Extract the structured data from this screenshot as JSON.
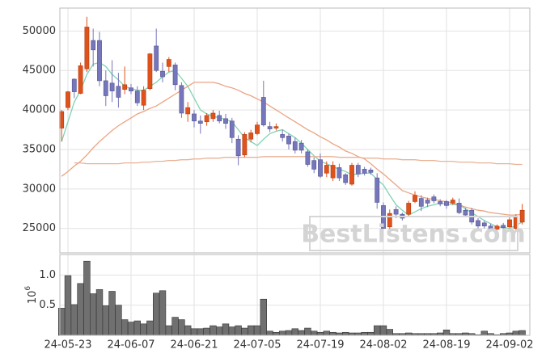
{
  "chart_data": [
    {
      "type": "candlestick",
      "ylim": [
        21900,
        52900
      ],
      "yticks": [
        25000,
        30000,
        35000,
        40000,
        45000,
        50000
      ],
      "grid": true,
      "up_color": "#e0521c",
      "down_color": "#7676bc",
      "watermark": "BestListens.com",
      "open": [
        37700,
        40300,
        43900,
        42100,
        45200,
        48800,
        48800,
        43700,
        43400,
        43000,
        42600,
        42800,
        42400,
        40600,
        42700,
        48100,
        44900,
        45500,
        45700,
        43100,
        39500,
        39500,
        38600,
        38500,
        38900,
        39300,
        38900,
        38600,
        36300,
        34300,
        36300,
        37000,
        41600,
        37900,
        37700,
        36900,
        36700,
        36000,
        35800,
        34700,
        33600,
        33700,
        32000,
        31400,
        32700,
        31800,
        30600,
        33000,
        32500,
        32400,
        31400,
        27900,
        25200,
        27400,
        26800,
        26800,
        28400,
        28800,
        28600,
        29000,
        28400,
        28400,
        28200,
        28200,
        27300,
        27300,
        26000,
        25700,
        25300,
        24900,
        25400,
        25200,
        25000,
        25800
      ],
      "high": [
        40000,
        42400,
        44000,
        46000,
        51800,
        50300,
        49900,
        45000,
        46300,
        44700,
        45500,
        43300,
        43000,
        43000,
        47200,
        50300,
        46000,
        46700,
        46000,
        43500,
        41000,
        40000,
        39300,
        39600,
        40000,
        39900,
        39500,
        39000,
        36800,
        37200,
        37500,
        38500,
        43700,
        38500,
        38300,
        37500,
        37000,
        36500,
        36200,
        35000,
        34000,
        34500,
        33500,
        33500,
        33200,
        32000,
        33300,
        33300,
        32800,
        32700,
        32000,
        28300,
        27400,
        27800,
        27000,
        28500,
        29700,
        29200,
        28900,
        29300,
        28700,
        28600,
        28900,
        28800,
        27600,
        27600,
        26300,
        26000,
        25600,
        25500,
        25700,
        26500,
        26800,
        28100
      ],
      "low": [
        36000,
        40000,
        41500,
        42000,
        44800,
        45500,
        43000,
        40500,
        41000,
        40300,
        42000,
        42000,
        40500,
        40000,
        42500,
        44800,
        43500,
        44800,
        42500,
        39000,
        38500,
        37800,
        37000,
        38000,
        38500,
        38300,
        37600,
        35800,
        33000,
        34000,
        35900,
        36800,
        37900,
        37200,
        37400,
        36000,
        35000,
        34500,
        34500,
        32800,
        32000,
        31400,
        31500,
        31000,
        31000,
        30500,
        30400,
        31500,
        31700,
        31800,
        27500,
        23300,
        24900,
        26300,
        26000,
        26500,
        28200,
        27200,
        27700,
        28200,
        27800,
        27500,
        28000,
        26800,
        26400,
        25500,
        25000,
        25000,
        24600,
        24600,
        24800,
        25000,
        24800,
        25500
      ],
      "close": [
        39800,
        42300,
        42300,
        45600,
        50500,
        47600,
        43700,
        41800,
        42400,
        41600,
        43200,
        42400,
        40900,
        42500,
        47100,
        45000,
        44200,
        46400,
        43200,
        39600,
        40300,
        38600,
        38300,
        39300,
        39600,
        38600,
        38300,
        36500,
        34200,
        36900,
        37100,
        38100,
        38100,
        37600,
        37900,
        36500,
        35700,
        34900,
        34900,
        33100,
        32500,
        31600,
        33000,
        33000,
        31400,
        30800,
        33000,
        31900,
        32000,
        32100,
        28300,
        25000,
        26900,
        26800,
        26300,
        28200,
        29200,
        27800,
        28200,
        28500,
        28100,
        27900,
        28600,
        27000,
        26700,
        25800,
        25300,
        25300,
        24900,
        25300,
        25100,
        26100,
        26400,
        27300
      ],
      "lines": [
        {
          "color": "#7fd3b2",
          "values": [
            36000,
            38500,
            41000,
            42500,
            44500,
            45800,
            46000,
            45500,
            44500,
            43800,
            43000,
            42700,
            42500,
            42500,
            43000,
            43500,
            44200,
            44800,
            45000,
            44000,
            43000,
            41500,
            40000,
            39500,
            39200,
            39000,
            38800,
            38500,
            37500,
            36500,
            36000,
            35500,
            36300,
            37000,
            37300,
            37500,
            37000,
            36500,
            35800,
            35000,
            34200,
            33500,
            33200,
            32800,
            32500,
            32200,
            31800,
            31900,
            32000,
            32000,
            31200,
            30500,
            29200,
            28000,
            27300,
            26700,
            27100,
            27500,
            27800,
            28000,
            28200,
            28100,
            28000,
            28000,
            27500,
            27000,
            26500,
            26000,
            25600,
            25200,
            25100,
            25000,
            25400,
            25800
          ]
        },
        {
          "color": "#eba482",
          "values": [
            31600,
            32200,
            32900,
            33500,
            34300,
            35200,
            36000,
            36700,
            37400,
            38000,
            38500,
            39000,
            39500,
            39800,
            40200,
            40500,
            41000,
            41500,
            42000,
            42500,
            43000,
            43500,
            43500,
            43500,
            43500,
            43300,
            43000,
            42800,
            42500,
            42100,
            41800,
            41400,
            41000,
            40500,
            40000,
            39500,
            39000,
            38500,
            38000,
            37500,
            37100,
            36600,
            36200,
            35700,
            35300,
            34800,
            34500,
            34100,
            33800,
            33200,
            32500,
            31900,
            31200,
            30500,
            29800,
            29500,
            29200,
            29000,
            28800,
            28700,
            28500,
            28400,
            28200,
            28000,
            27700,
            27500,
            27300,
            27200,
            27000,
            26900,
            26800,
            26700,
            26700,
            26800
          ]
        },
        {
          "color": "#e9b295",
          "values": [
            null,
            null,
            33300,
            33300,
            33200,
            33200,
            33200,
            33200,
            33200,
            33200,
            33300,
            33300,
            33300,
            33400,
            33400,
            33500,
            33500,
            33600,
            33600,
            33700,
            33700,
            33800,
            33800,
            33900,
            33900,
            33900,
            34000,
            34000,
            34000,
            34000,
            34000,
            34000,
            34100,
            34100,
            34100,
            34100,
            34100,
            34100,
            34100,
            34100,
            34100,
            34100,
            34100,
            34100,
            34000,
            34000,
            34000,
            34000,
            33900,
            33900,
            33900,
            33800,
            33800,
            33800,
            33700,
            33700,
            33700,
            33600,
            33600,
            33600,
            33500,
            33500,
            33500,
            33400,
            33400,
            33400,
            33300,
            33300,
            33300,
            33200,
            33200,
            33200,
            33100,
            33100
          ]
        }
      ]
    },
    {
      "type": "bar",
      "ylabel": "10",
      "ylabel_exponent": "6",
      "ylim": [
        0,
        1.34
      ],
      "yticks": [
        0.5,
        {
          "value": 1,
          "label": "1.0"
        }
      ],
      "grid": true,
      "color": "#707070",
      "categories": [
        null,
        "24-05-23",
        null,
        null,
        null,
        null,
        null,
        null,
        null,
        null,
        null,
        "24-06-07",
        null,
        null,
        null,
        null,
        null,
        null,
        null,
        null,
        null,
        "24-06-21",
        null,
        null,
        null,
        null,
        null,
        null,
        null,
        null,
        null,
        "24-07-05",
        null,
        null,
        null,
        null,
        null,
        null,
        null,
        null,
        null,
        "24-07-19",
        null,
        null,
        null,
        null,
        null,
        null,
        null,
        null,
        null,
        "24-08-02",
        null,
        null,
        null,
        null,
        null,
        null,
        null,
        null,
        null,
        "24-08-19",
        null,
        null,
        null,
        null,
        null,
        null,
        null,
        null,
        null,
        "24-09-02",
        null,
        null
      ],
      "values": [
        0.45,
        0.99,
        0.51,
        0.86,
        1.23,
        0.69,
        0.76,
        0.49,
        0.73,
        0.5,
        0.26,
        0.22,
        0.24,
        0.19,
        0.24,
        0.7,
        0.74,
        0.16,
        0.3,
        0.26,
        0.16,
        0.11,
        0.11,
        0.12,
        0.16,
        0.14,
        0.19,
        0.14,
        0.16,
        0.12,
        0.16,
        0.16,
        0.6,
        0.07,
        0.05,
        0.07,
        0.08,
        0.11,
        0.08,
        0.12,
        0.07,
        0.05,
        0.07,
        0.05,
        0.04,
        0.05,
        0.04,
        0.04,
        0.05,
        0.05,
        0.16,
        0.16,
        0.1,
        0.03,
        0.03,
        0.04,
        0.03,
        0.03,
        0.03,
        0.03,
        0.04,
        0.09,
        0.03,
        0.03,
        0.04,
        0.03,
        0.01,
        0.07,
        0.03,
        0.01,
        0.03,
        0.04,
        0.07,
        0.08
      ]
    }
  ]
}
